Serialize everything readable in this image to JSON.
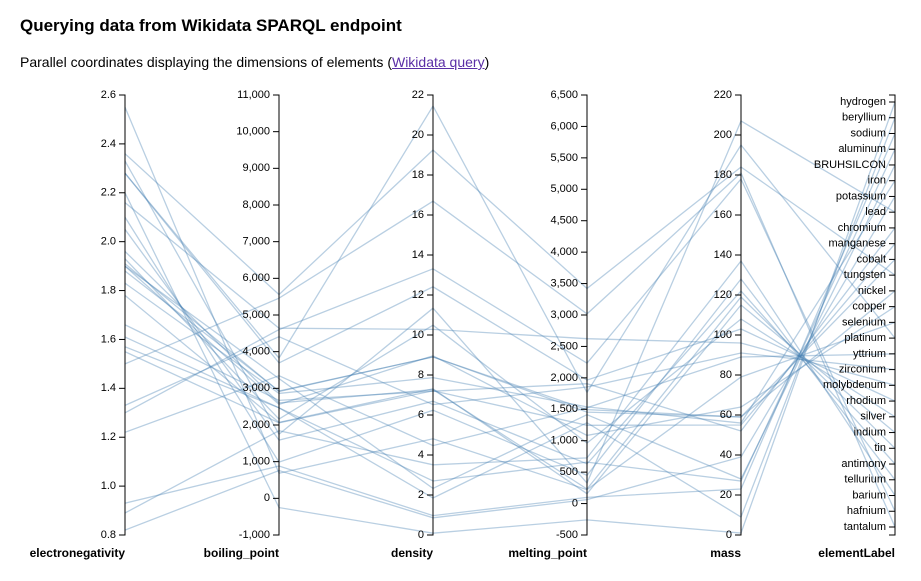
{
  "page": {
    "title": "Querying data from Wikidata SPARQL endpoint",
    "subtitle_before": "Parallel coordinates displaying the dimensions of elements (",
    "subtitle_link": "Wikidata query",
    "subtitle_after": ")"
  },
  "chart_data": {
    "type": "parallel_coordinates",
    "line_color": "#4682b4",
    "axes": [
      {
        "name": "electronegativity",
        "label": "electronegativity",
        "scale": "linear",
        "domain": [
          0.8,
          2.6
        ],
        "ticks": [
          0.8,
          1.0,
          1.2,
          1.4,
          1.6,
          1.8,
          2.0,
          2.2,
          2.4,
          2.6
        ],
        "tick_labels": [
          "0.8",
          "1.0",
          "1.2",
          "1.4",
          "1.6",
          "1.8",
          "2.0",
          "2.2",
          "2.4",
          "2.6"
        ]
      },
      {
        "name": "boiling_point",
        "label": "boiling_point",
        "scale": "linear",
        "domain": [
          -1000,
          11000
        ],
        "ticks": [
          -1000,
          0,
          1000,
          2000,
          3000,
          4000,
          5000,
          6000,
          7000,
          8000,
          9000,
          10000,
          11000
        ],
        "tick_labels": [
          "-1,000",
          "0",
          "1,000",
          "2,000",
          "3,000",
          "4,000",
          "5,000",
          "6,000",
          "7,000",
          "8,000",
          "9,000",
          "10,000",
          "11,000"
        ]
      },
      {
        "name": "density",
        "label": "density",
        "scale": "linear",
        "domain": [
          0,
          22
        ],
        "ticks": [
          0,
          2,
          4,
          6,
          8,
          10,
          12,
          14,
          16,
          18,
          20,
          22
        ],
        "tick_labels": [
          "0",
          "2",
          "4",
          "6",
          "8",
          "10",
          "12",
          "14",
          "16",
          "18",
          "20",
          "22"
        ]
      },
      {
        "name": "melting_point",
        "label": "melting_point",
        "scale": "linear",
        "domain": [
          -500,
          6500
        ],
        "ticks": [
          -500,
          0,
          500,
          1000,
          1500,
          2000,
          2500,
          3000,
          3500,
          4000,
          4500,
          5000,
          5500,
          6000,
          6500
        ],
        "tick_labels": [
          "-500",
          "0",
          "500",
          "1,000",
          "1,500",
          "2,000",
          "2,500",
          "3,000",
          "3,500",
          "4,000",
          "4,500",
          "5,000",
          "5,500",
          "6,000",
          "6,500"
        ]
      },
      {
        "name": "mass",
        "label": "mass",
        "scale": "linear",
        "domain": [
          0,
          220
        ],
        "ticks": [
          0,
          20,
          40,
          60,
          80,
          100,
          120,
          140,
          160,
          180,
          200,
          220
        ],
        "tick_labels": [
          "0",
          "20",
          "40",
          "60",
          "80",
          "100",
          "120",
          "140",
          "160",
          "180",
          "200",
          "220"
        ]
      },
      {
        "name": "elementLabel",
        "label": "elementLabel",
        "scale": "point",
        "domain": [
          "hydrogen",
          "beryllium",
          "sodium",
          "aluminum",
          "BRUHSILCON",
          "iron",
          "potassium",
          "lead",
          "chromium",
          "manganese",
          "cobalt",
          "tungsten",
          "nickel",
          "copper",
          "selenium",
          "platinum",
          "yttrium",
          "zirconium",
          "molybdenum",
          "rhodium",
          "silver",
          "indium",
          "tin",
          "antimony",
          "tellurium",
          "barium",
          "hafnium",
          "tantalum"
        ]
      }
    ],
    "records": [
      {
        "electronegativity": 2.2,
        "boiling_point": -253,
        "density": 0.09,
        "melting_point": -259,
        "mass": 1,
        "elementLabel": "hydrogen"
      },
      {
        "electronegativity": 1.57,
        "boiling_point": 2469,
        "density": 1.85,
        "melting_point": 1287,
        "mass": 9,
        "elementLabel": "beryllium"
      },
      {
        "electronegativity": 0.93,
        "boiling_point": 883,
        "density": 0.97,
        "melting_point": 98,
        "mass": 23,
        "elementLabel": "sodium"
      },
      {
        "electronegativity": 1.61,
        "boiling_point": 2470,
        "density": 2.7,
        "melting_point": 660,
        "mass": 27,
        "elementLabel": "aluminum"
      },
      {
        "electronegativity": 1.9,
        "boiling_point": 3265,
        "density": 2.33,
        "melting_point": 1414,
        "mass": 28,
        "elementLabel": "BRUHSILCON"
      },
      {
        "electronegativity": 1.83,
        "boiling_point": 2862,
        "density": 7.87,
        "melting_point": 1538,
        "mass": 56,
        "elementLabel": "iron"
      },
      {
        "electronegativity": 0.82,
        "boiling_point": 759,
        "density": 0.86,
        "melting_point": 63,
        "mass": 39,
        "elementLabel": "potassium"
      },
      {
        "electronegativity": 2.33,
        "boiling_point": 1749,
        "density": 11.34,
        "melting_point": 327,
        "mass": 207,
        "elementLabel": "lead"
      },
      {
        "electronegativity": 1.66,
        "boiling_point": 2671,
        "density": 7.19,
        "melting_point": 1907,
        "mass": 52,
        "elementLabel": "chromium"
      },
      {
        "electronegativity": 1.55,
        "boiling_point": 2061,
        "density": 7.21,
        "melting_point": 1246,
        "mass": 55,
        "elementLabel": "manganese"
      },
      {
        "electronegativity": 1.88,
        "boiling_point": 2927,
        "density": 8.9,
        "melting_point": 1495,
        "mass": 59,
        "elementLabel": "cobalt"
      },
      {
        "electronegativity": 2.36,
        "boiling_point": 5555,
        "density": 19.25,
        "melting_point": 3422,
        "mass": 184,
        "elementLabel": "tungsten"
      },
      {
        "electronegativity": 1.91,
        "boiling_point": 2913,
        "density": 8.91,
        "melting_point": 1455,
        "mass": 59,
        "elementLabel": "nickel"
      },
      {
        "electronegativity": 1.9,
        "boiling_point": 2562,
        "density": 8.96,
        "melting_point": 1085,
        "mass": 64,
        "elementLabel": "copper"
      },
      {
        "electronegativity": 2.55,
        "boiling_point": 685,
        "density": 4.81,
        "melting_point": 221,
        "mass": 79,
        "elementLabel": "selenium"
      },
      {
        "electronegativity": 2.28,
        "boiling_point": 3825,
        "density": 21.45,
        "melting_point": 1768,
        "mass": 195,
        "elementLabel": "platinum"
      },
      {
        "electronegativity": 1.22,
        "boiling_point": 3345,
        "density": 4.47,
        "melting_point": 1526,
        "mass": 89,
        "elementLabel": "yttrium"
      },
      {
        "electronegativity": 1.33,
        "boiling_point": 4409,
        "density": 6.52,
        "melting_point": 1855,
        "mass": 91,
        "elementLabel": "zirconium"
      },
      {
        "electronegativity": 2.16,
        "boiling_point": 4639,
        "density": 10.28,
        "melting_point": 2623,
        "mass": 96,
        "elementLabel": "molybdenum"
      },
      {
        "electronegativity": 2.28,
        "boiling_point": 3695,
        "density": 12.41,
        "melting_point": 1964,
        "mass": 103,
        "elementLabel": "rhodium"
      },
      {
        "electronegativity": 1.93,
        "boiling_point": 2162,
        "density": 10.49,
        "melting_point": 962,
        "mass": 108,
        "elementLabel": "silver"
      },
      {
        "electronegativity": 1.78,
        "boiling_point": 2072,
        "density": 7.31,
        "melting_point": 157,
        "mass": 115,
        "elementLabel": "indium"
      },
      {
        "electronegativity": 1.96,
        "boiling_point": 2602,
        "density": 7.27,
        "melting_point": 232,
        "mass": 119,
        "elementLabel": "tin"
      },
      {
        "electronegativity": 2.05,
        "boiling_point": 1587,
        "density": 6.69,
        "melting_point": 631,
        "mass": 122,
        "elementLabel": "antimony"
      },
      {
        "electronegativity": 2.1,
        "boiling_point": 988,
        "density": 6.24,
        "melting_point": 450,
        "mass": 128,
        "elementLabel": "tellurium"
      },
      {
        "electronegativity": 0.89,
        "boiling_point": 1845,
        "density": 3.51,
        "melting_point": 727,
        "mass": 137,
        "elementLabel": "barium"
      },
      {
        "electronegativity": 1.3,
        "boiling_point": 4603,
        "density": 13.31,
        "melting_point": 2233,
        "mass": 178,
        "elementLabel": "hafnium"
      },
      {
        "electronegativity": 1.5,
        "boiling_point": 5458,
        "density": 16.69,
        "melting_point": 3017,
        "mass": 181,
        "elementLabel": "tantalum"
      }
    ]
  }
}
